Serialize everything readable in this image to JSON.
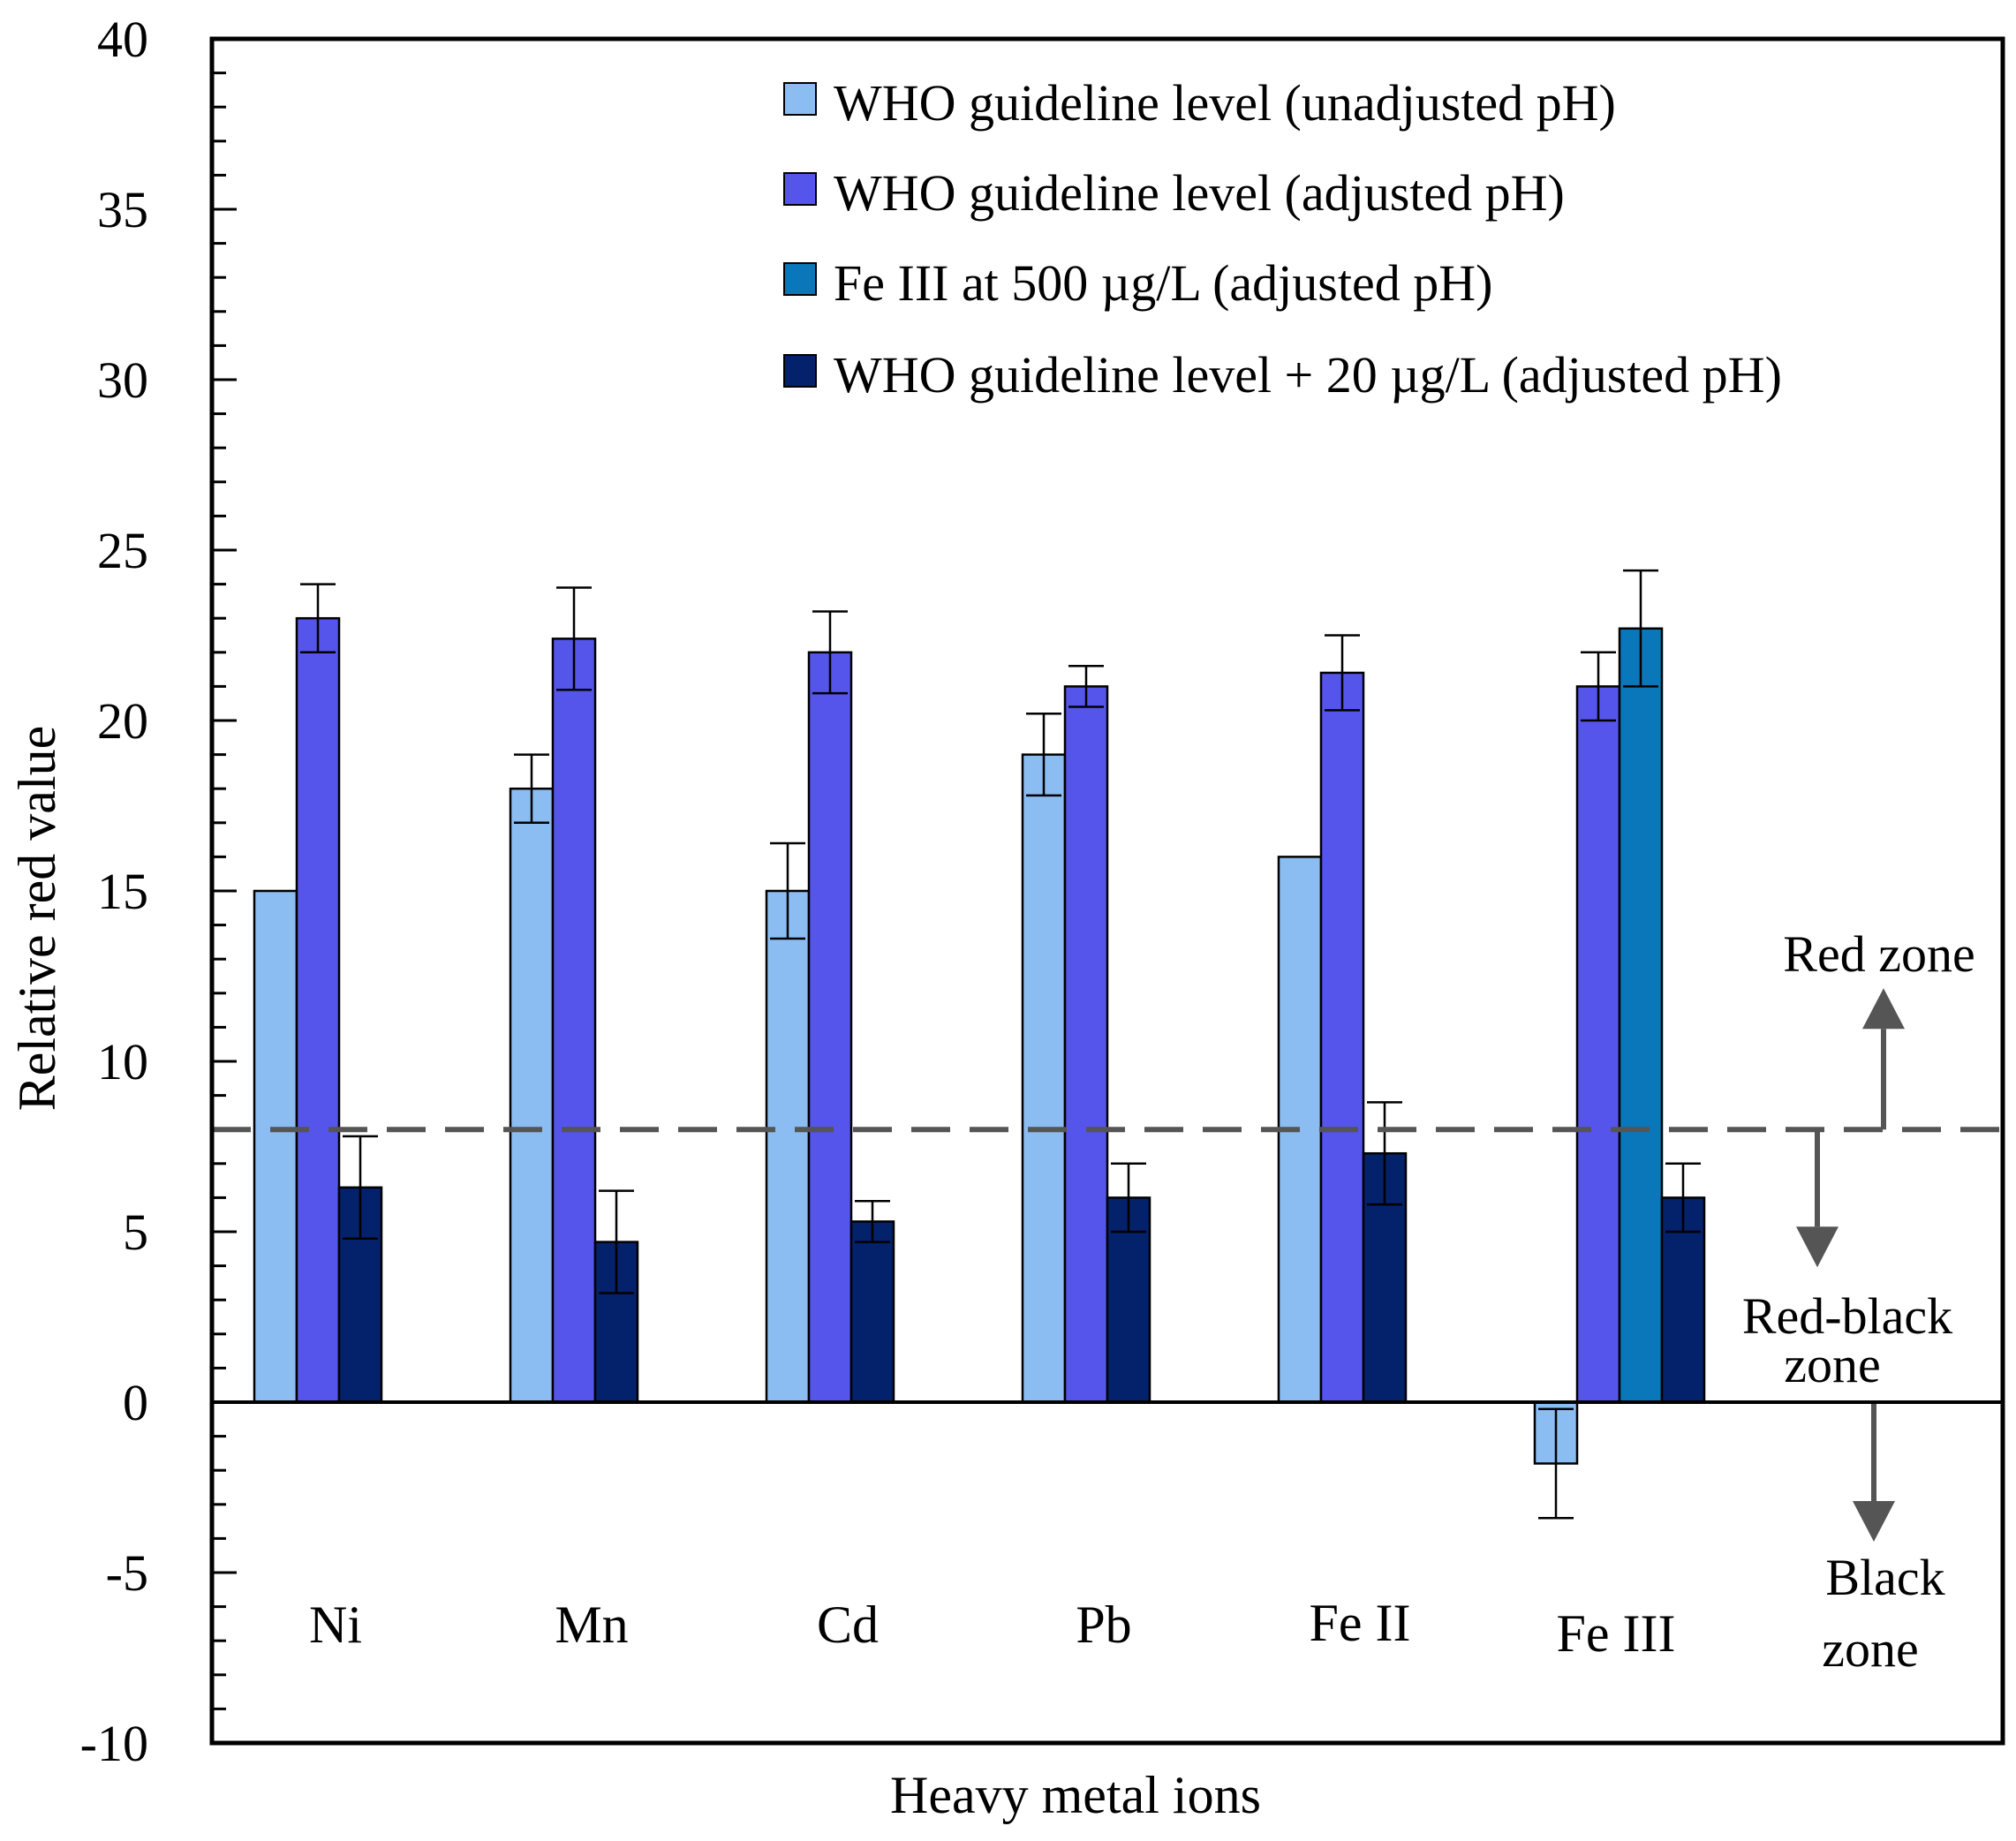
{
  "chart_data": {
    "type": "bar",
    "title": "",
    "xlabel": "Heavy metal ions",
    "ylabel": "Relative red value",
    "ylim": [
      -10,
      40
    ],
    "yticks": [
      40,
      35,
      30,
      25,
      20,
      15,
      10,
      5,
      0,
      -5,
      -10
    ],
    "ytick_labels": [
      "40",
      "35",
      "30",
      "25",
      "20",
      "15",
      "10",
      "5",
      "0",
      "-5",
      "-10"
    ],
    "grid": false,
    "legend_position": "top-right",
    "categories": [
      "Ni",
      "Mn",
      "Cd",
      "Pb",
      "Fe II",
      "Fe III"
    ],
    "series": [
      {
        "name": "WHO guideline level (unadjusted pH)",
        "color": "#8bbdf2",
        "values": [
          15,
          18,
          15,
          19,
          16,
          -1.8
        ],
        "errors": [
          0,
          1,
          1.4,
          1.2,
          0,
          1.6
        ]
      },
      {
        "name": "WHO guideline level (adjusted pH)",
        "color": "#5555ec",
        "values": [
          23,
          22.4,
          22,
          21,
          21.4,
          21
        ],
        "errors": [
          1,
          1.5,
          1.2,
          0.6,
          1.1,
          1
        ]
      },
      {
        "name": "Fe III at 500 µg/L (adjusted pH)",
        "color": "#0a77ba",
        "values": [
          null,
          null,
          null,
          null,
          null,
          22.7
        ],
        "errors": [
          null,
          null,
          null,
          null,
          null,
          1.7
        ]
      },
      {
        "name": "WHO guideline level + 20 µg/L (adjusted pH)",
        "color": "#04216c",
        "values": [
          6.3,
          4.7,
          5.3,
          6,
          7.3,
          6
        ],
        "errors": [
          1.5,
          1.5,
          0.6,
          1,
          1.5,
          1
        ]
      }
    ],
    "threshold_line": {
      "value": 8,
      "style": "dashed",
      "color": "#555555"
    },
    "annotations": [
      "Red zone",
      "Red-black",
      "zone",
      "Black",
      "zone"
    ]
  }
}
